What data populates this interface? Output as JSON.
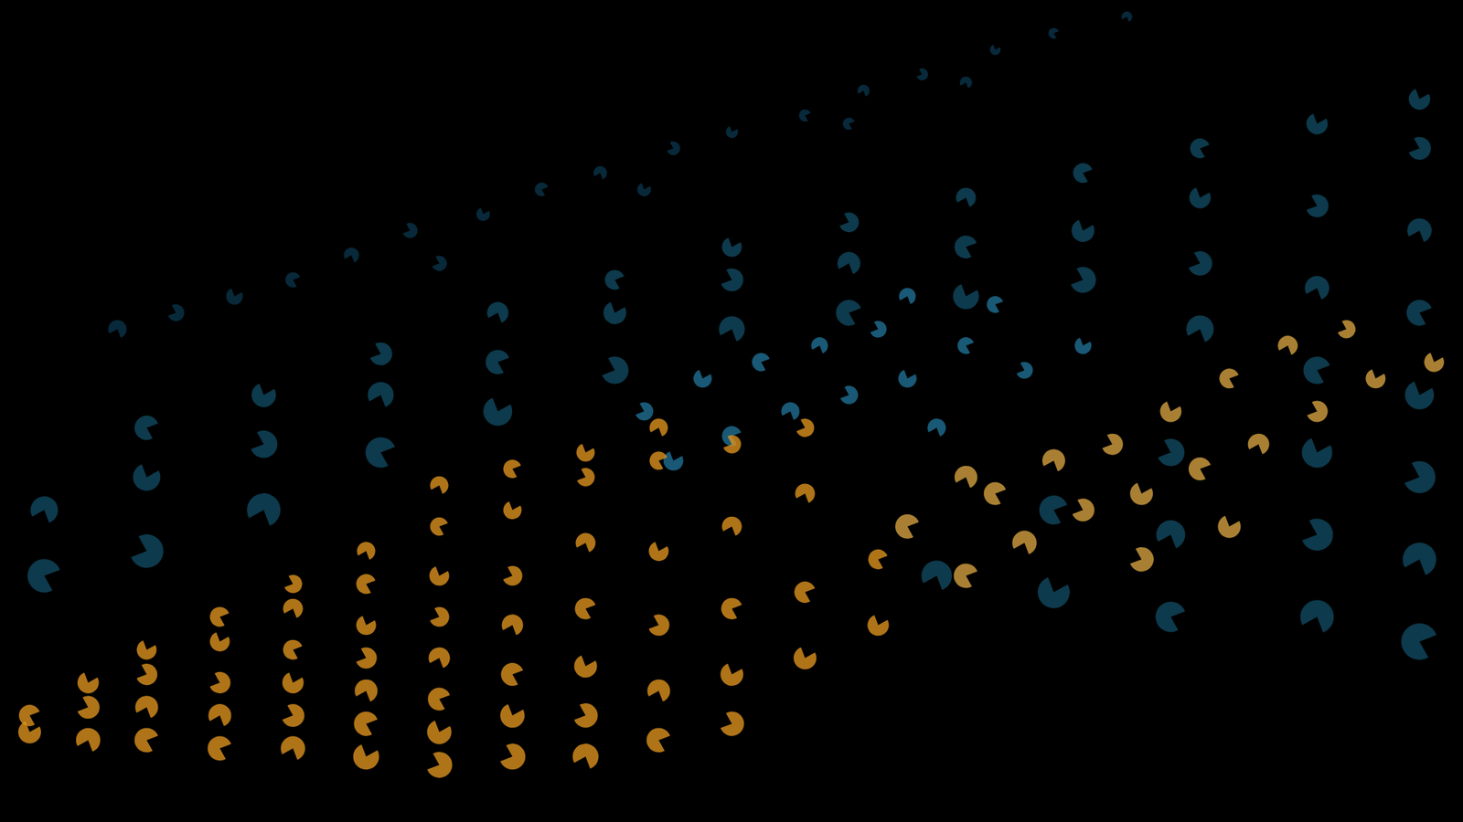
{
  "chart_data": {
    "type": "scatter",
    "marker": "pie",
    "tick_labels": false,
    "xlim": [
      0,
      100
    ],
    "ylim": [
      0,
      100
    ],
    "xticks": [],
    "yticks": [],
    "series": [
      {
        "color": "#15607e",
        "x": [
          3,
          3,
          10,
          10,
          10,
          18,
          18,
          18,
          26,
          26,
          26,
          34,
          34,
          34,
          42,
          42,
          42,
          50,
          50,
          50,
          58,
          58,
          58,
          66,
          66,
          66,
          74,
          74,
          74,
          82,
          82,
          82,
          82,
          90,
          90,
          90,
          90,
          90,
          90,
          90,
          97,
          97,
          97,
          97,
          97,
          97,
          97,
          97,
          80,
          80,
          80,
          72,
          72,
          64
        ],
        "values": [
          30,
          38,
          33,
          42,
          48,
          38,
          46,
          52,
          45,
          52,
          57,
          50,
          56,
          62,
          55,
          62,
          66,
          60,
          66,
          70,
          62,
          68,
          73,
          64,
          70,
          76,
          66,
          72,
          79,
          60,
          68,
          76,
          82,
          25,
          35,
          45,
          55,
          65,
          75,
          85,
          22,
          32,
          42,
          52,
          62,
          72,
          82,
          88,
          25,
          35,
          45,
          28,
          38,
          30
        ],
        "sizes": [
          22,
          18,
          22,
          18,
          16,
          22,
          18,
          16,
          20,
          17,
          15,
          19,
          16,
          14,
          18,
          15,
          13,
          17,
          15,
          13,
          17,
          15,
          13,
          17,
          15,
          13,
          17,
          15,
          13,
          18,
          16,
          14,
          13,
          22,
          21,
          20,
          18,
          16,
          15,
          14,
          24,
          22,
          21,
          19,
          17,
          16,
          15,
          14,
          20,
          19,
          18,
          21,
          19,
          20
        ]
      },
      {
        "color": "#0e4560",
        "x": [
          8,
          12,
          16,
          20,
          24,
          28,
          33,
          37,
          41,
          46,
          50,
          55,
          59,
          63,
          68,
          72,
          77,
          30,
          44,
          58,
          66
        ],
        "values": [
          60,
          62,
          64,
          66,
          69,
          72,
          74,
          77,
          79,
          82,
          84,
          86,
          89,
          91,
          94,
          96,
          98,
          68,
          77,
          85,
          90
        ],
        "sizes": [
          12,
          11,
          11,
          10,
          10,
          10,
          9,
          9,
          9,
          9,
          8,
          8,
          8,
          8,
          7,
          7,
          7,
          10,
          9,
          8,
          8
        ]
      },
      {
        "color": "#2a95c4",
        "x": [
          44,
          48,
          52,
          56,
          60,
          46,
          50,
          54,
          58,
          62,
          66,
          64,
          70,
          74,
          68,
          62
        ],
        "values": [
          50,
          54,
          56,
          58,
          60,
          44,
          47,
          50,
          52,
          54,
          58,
          48,
          55,
          58,
          63,
          64
        ],
        "sizes": [
          12,
          12,
          12,
          11,
          11,
          13,
          13,
          12,
          12,
          12,
          11,
          12,
          11,
          11,
          11,
          11
        ]
      },
      {
        "color": "#e0951f",
        "x": [
          2,
          2,
          6,
          6,
          6,
          10,
          10,
          10,
          10,
          15,
          15,
          15,
          15,
          15,
          20,
          20,
          20,
          20,
          20,
          20,
          25,
          25,
          25,
          25,
          25,
          25,
          25,
          30,
          30,
          30,
          30,
          30,
          30,
          30,
          30,
          35,
          35,
          35,
          35,
          35,
          35,
          35,
          40,
          40,
          40,
          40,
          40,
          40,
          40,
          45,
          45,
          45,
          45,
          45,
          45,
          50,
          50,
          50,
          50,
          50,
          55,
          55,
          55,
          55,
          60,
          60
        ],
        "values": [
          11,
          13,
          10,
          14,
          17,
          10,
          14,
          18,
          21,
          9,
          13,
          17,
          22,
          25,
          9,
          13,
          17,
          21,
          26,
          29,
          8,
          12,
          16,
          20,
          24,
          29,
          33,
          7,
          11,
          15,
          20,
          25,
          30,
          36,
          41,
          8,
          13,
          18,
          24,
          30,
          38,
          43,
          8,
          13,
          19,
          26,
          34,
          42,
          45,
          10,
          16,
          24,
          33,
          44,
          48,
          12,
          18,
          26,
          36,
          46,
          20,
          28,
          40,
          48,
          24,
          32
        ],
        "sizes": [
          15,
          14,
          16,
          15,
          14,
          16,
          15,
          14,
          13,
          16,
          15,
          14,
          13,
          13,
          16,
          15,
          14,
          13,
          13,
          12,
          17,
          16,
          15,
          14,
          13,
          13,
          12,
          17,
          16,
          15,
          14,
          13,
          13,
          12,
          12,
          17,
          16,
          15,
          14,
          13,
          12,
          12,
          17,
          16,
          15,
          14,
          13,
          12,
          12,
          16,
          15,
          14,
          13,
          12,
          12,
          16,
          15,
          14,
          13,
          12,
          15,
          14,
          13,
          12,
          14,
          13
        ]
      },
      {
        "color": "#d9a441",
        "x": [
          66,
          70,
          74,
          78,
          82,
          86,
          90,
          94,
          68,
          72,
          76,
          80,
          84,
          88,
          92,
          98,
          62,
          66,
          78,
          84
        ],
        "values": [
          30,
          34,
          38,
          40,
          43,
          46,
          50,
          54,
          40,
          44,
          46,
          50,
          54,
          58,
          60,
          56,
          36,
          42,
          32,
          36
        ],
        "sizes": [
          16,
          16,
          15,
          15,
          15,
          14,
          14,
          13,
          15,
          15,
          14,
          14,
          13,
          13,
          12,
          13,
          16,
          15,
          16,
          15
        ]
      }
    ]
  }
}
